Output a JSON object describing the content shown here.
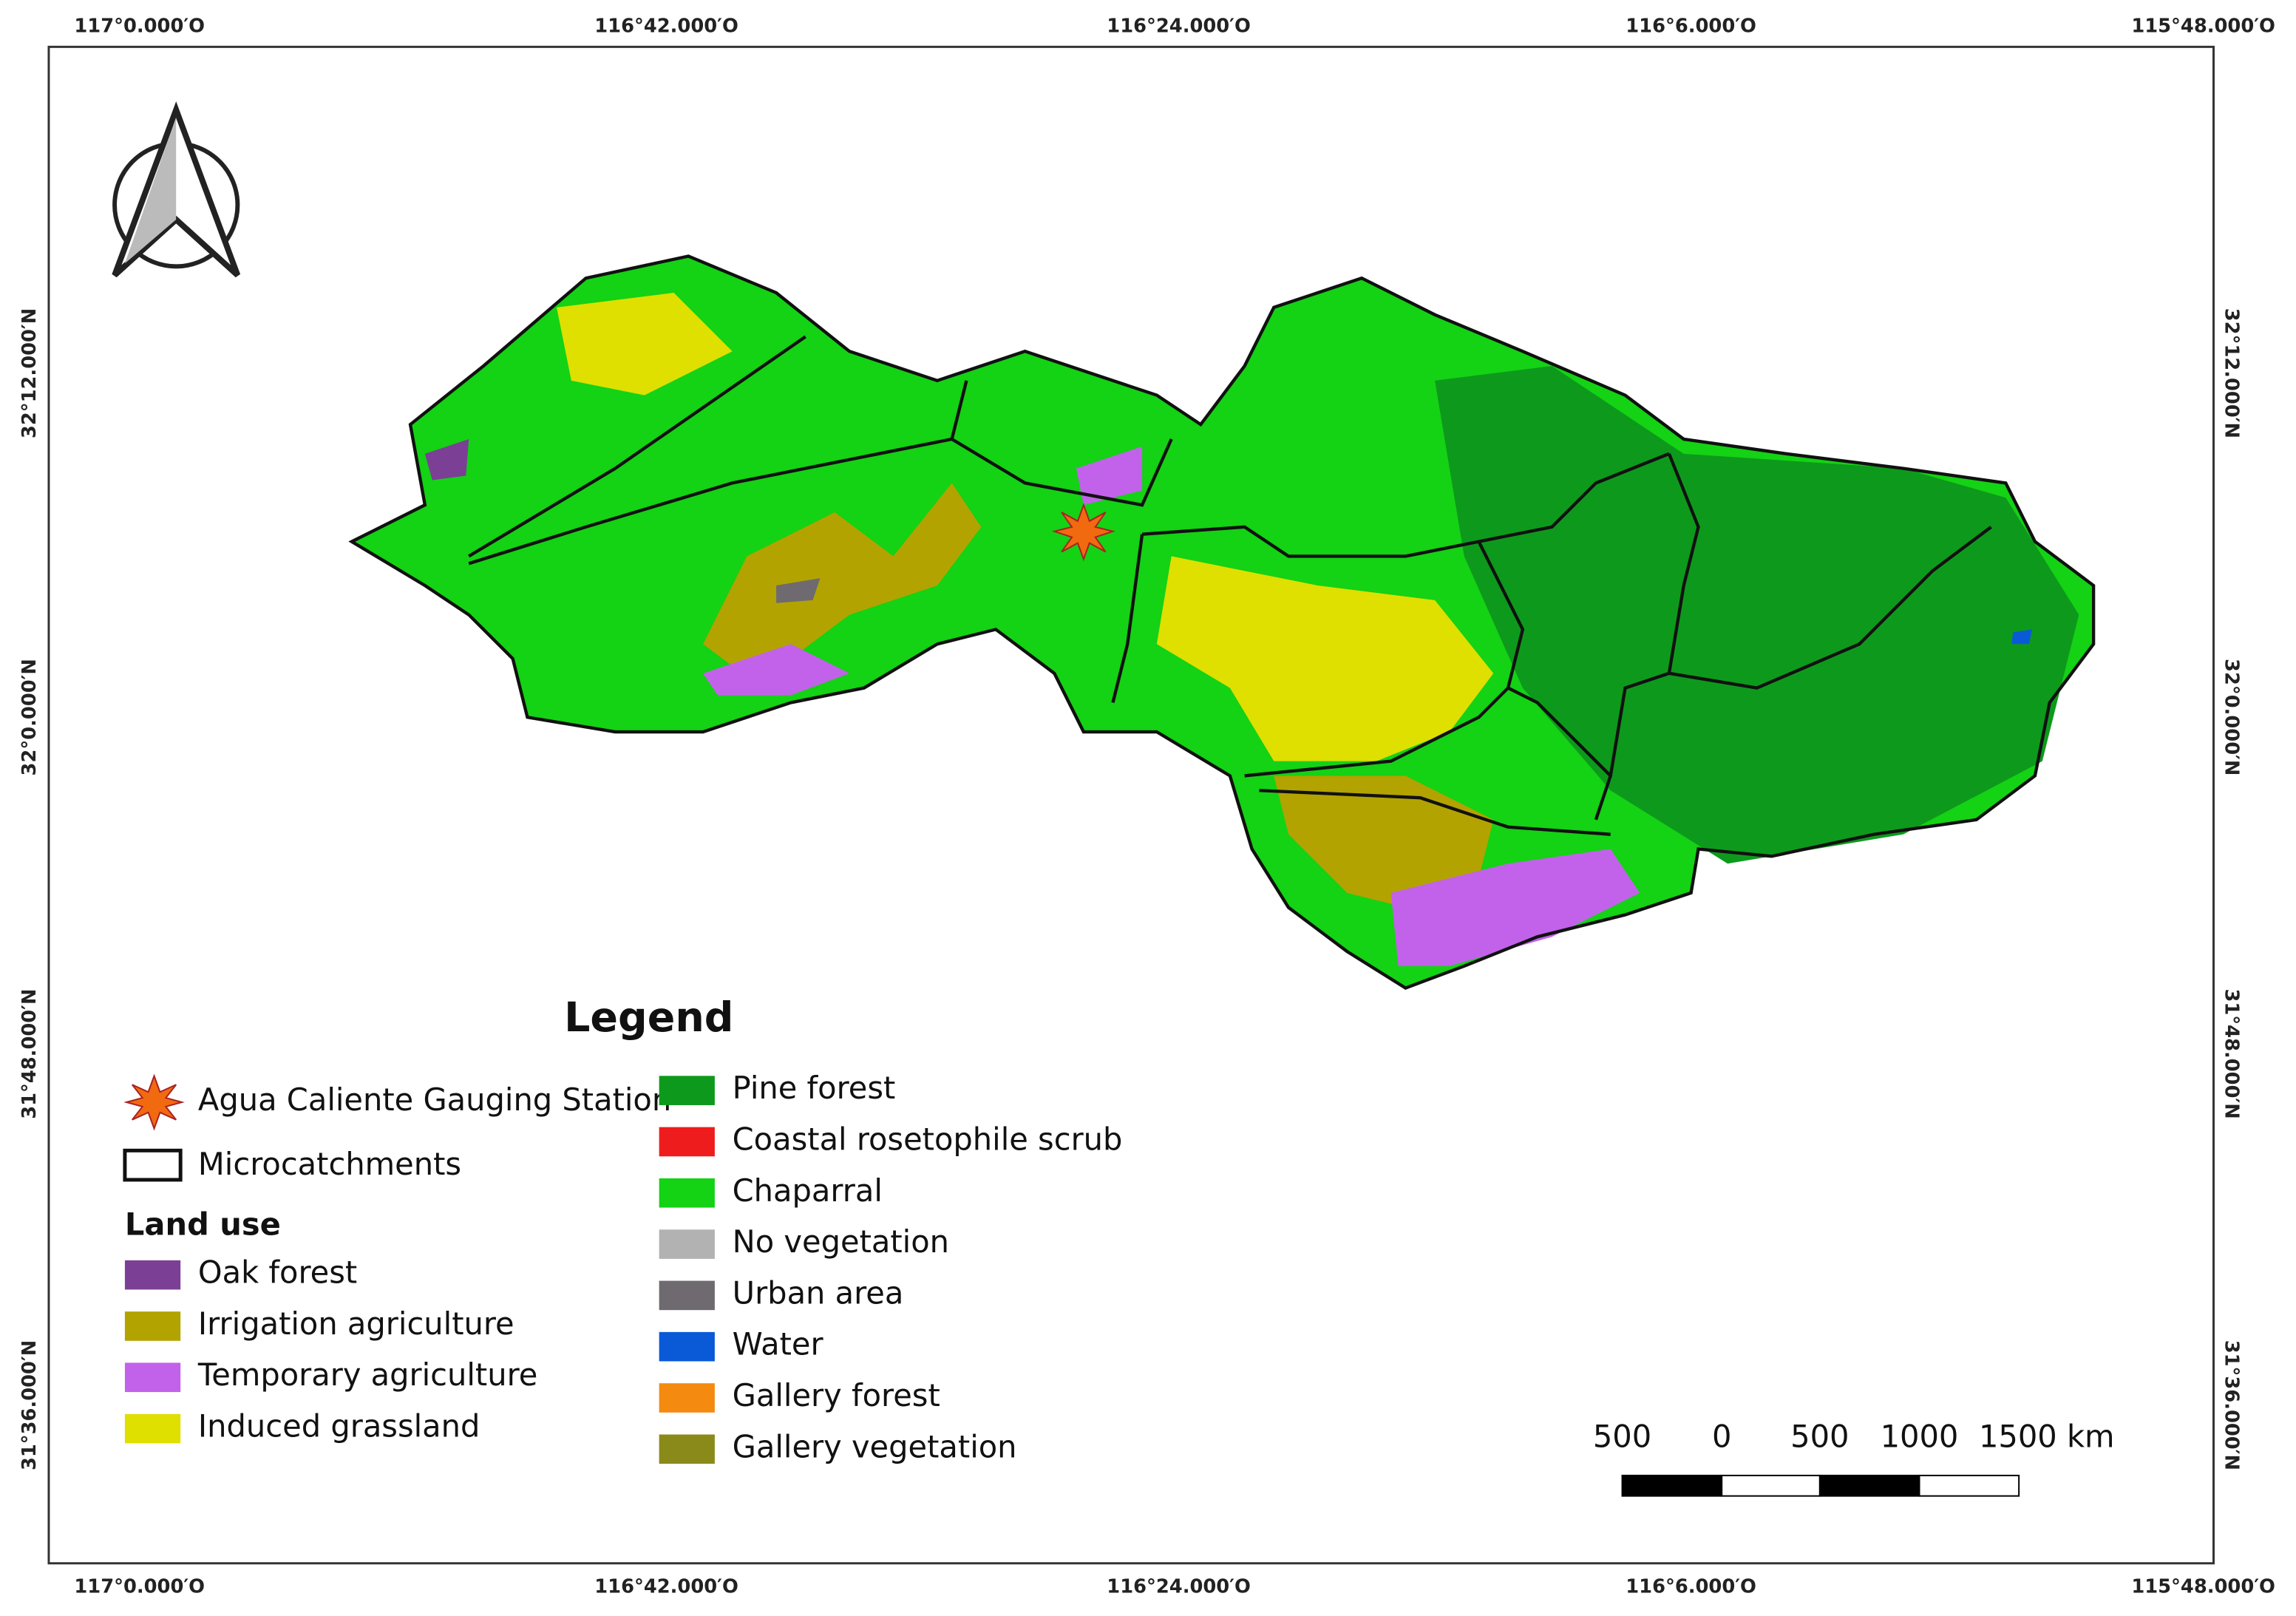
{
  "map": {
    "top_labels": [
      "117°0.000′O",
      "116°42.000′O",
      "116°24.000′O",
      "116°6.000′O",
      "115°48.000′O"
    ],
    "bottom_labels": [
      "117°0.000′O",
      "116°42.000′O",
      "116°24.000′O",
      "116°6.000′O",
      "115°48.000′O"
    ],
    "left_labels": [
      "32°12.000′N",
      "32°0.000′N",
      "31°48.000′N",
      "31°36.000′N"
    ],
    "right_labels": [
      "32°12.000′N",
      "32°0.000′N",
      "31°48.000′N",
      "31°36.000′N"
    ],
    "legend": {
      "title": "Legend",
      "station": "Agua Caliente Gauging Station",
      "microcatchments": "Microcatchments",
      "land_use_title": "Land use",
      "classes": [
        {
          "name": "Oak forest",
          "color": "#7b3f96"
        },
        {
          "name": "Irrigation agriculture",
          "color": "#b3a300"
        },
        {
          "name": "Temporary agriculture",
          "color": "#c262ea"
        },
        {
          "name": "Induced grassland",
          "color": "#dfe000"
        },
        {
          "name": "Pine forest",
          "color": "#0d9a1c"
        },
        {
          "name": "Coastal rosetophile scrub",
          "color": "#ee1c1c"
        },
        {
          "name": "Chaparral",
          "color": "#14d214"
        },
        {
          "name": "No vegetation",
          "color": "#b2b2b2"
        },
        {
          "name": "Urban area",
          "color": "#6e6a70"
        },
        {
          "name": "Water",
          "color": "#0a5ad8"
        },
        {
          "name": "Gallery forest",
          "color": "#f58a10"
        },
        {
          "name": "Gallery vegetation",
          "color": "#8a8a1a"
        }
      ]
    },
    "scale_bar": {
      "labels": [
        "500",
        "0",
        "500",
        "1000",
        "1500 km"
      ]
    }
  }
}
